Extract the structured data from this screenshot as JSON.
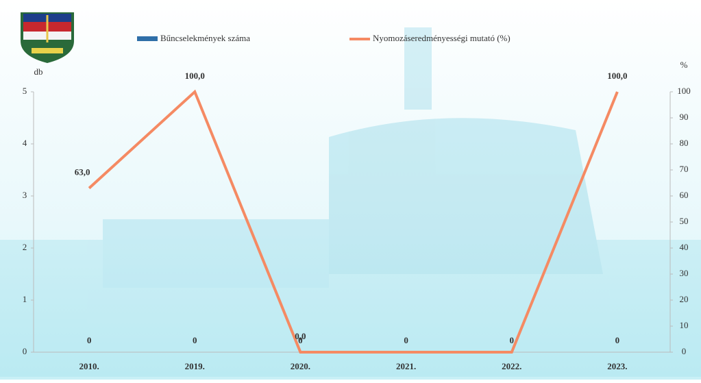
{
  "chart_data": {
    "type": "bar_line",
    "y_label": "db",
    "y2_label": "%",
    "categories": [
      "2010.",
      "2019.",
      "2020.",
      "2021.",
      "2022.",
      "2023."
    ],
    "series": [
      {
        "name": "Bűncselekmények száma",
        "type": "bar",
        "color": "#2f6fa8",
        "values": [
          0,
          0,
          0,
          0,
          0,
          0
        ]
      },
      {
        "name": "Nyomozáseredményességi mutató (%)",
        "type": "line",
        "axis": "y2",
        "color": "#f58a63",
        "values": [
          63,
          100,
          0,
          0,
          0,
          100
        ],
        "value_labels": [
          "63,0",
          "100,0",
          "0,0",
          null,
          null,
          "100,0"
        ]
      }
    ],
    "ylim": [
      0,
      5
    ],
    "yticks": [
      0,
      1,
      2,
      3,
      4,
      5
    ],
    "y2lim": [
      0,
      100
    ],
    "y2ticks": [
      0,
      10,
      20,
      30,
      40,
      50,
      60,
      70,
      80,
      90,
      100
    ],
    "legend": "top"
  }
}
